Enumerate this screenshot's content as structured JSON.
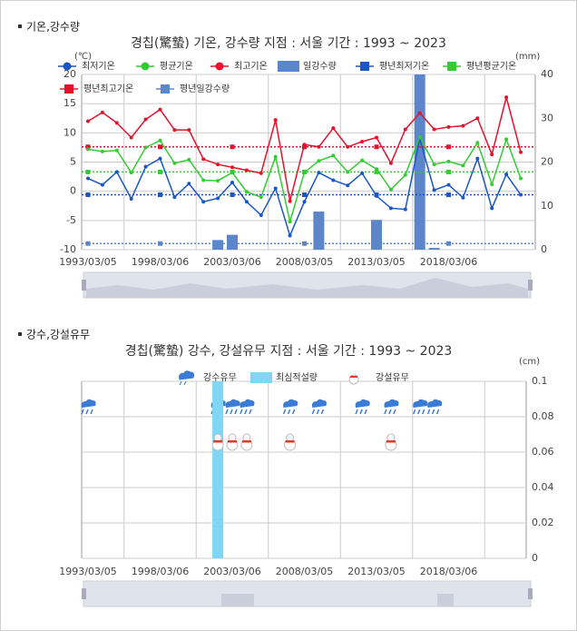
{
  "chart_data": [
    {
      "type": "combo",
      "section_title": "기온,강수량",
      "title": "경칩(驚蟄) 기온, 강수량  지점 : 서울 기간 : 1993 ~ 2023",
      "y_label": "(℃)",
      "y2_label": "(mm)",
      "categories": [
        "1993/03/05",
        null,
        null,
        null,
        null,
        "1998/03/06",
        null,
        null,
        null,
        null,
        "2003/03/06",
        null,
        null,
        null,
        null,
        "2008/03/05",
        null,
        null,
        null,
        null,
        "2013/03/05",
        null,
        null,
        null,
        null,
        "2018/03/06",
        null,
        null,
        null,
        null,
        null
      ],
      "ylim": [
        -10,
        20
      ],
      "yticks": [
        -10,
        -5,
        0,
        5,
        10,
        15,
        20
      ],
      "y2lim": [
        0,
        40
      ],
      "y2ticks": [
        0,
        10,
        20,
        30,
        40
      ],
      "grid": true,
      "series": [
        {
          "name": "최저기온",
          "kind": "line",
          "color": "#1a56c4",
          "values": [
            2.2,
            1.1,
            3.3,
            -1.3,
            4.2,
            5.6,
            -1,
            1.3,
            -1.8,
            -1.2,
            1.5,
            -1.8,
            -4.1,
            0.5,
            -7.6,
            -1.8,
            3.2,
            1.9,
            1,
            3.1,
            -0.8,
            -2.9,
            -3.1,
            9,
            0.2,
            1.1,
            -1.1,
            5.6,
            -2.9,
            2.9,
            -0.6
          ]
        },
        {
          "name": "평균기온",
          "kind": "line",
          "color": "#33cc33",
          "values": [
            7.2,
            6.8,
            7,
            3.2,
            7.5,
            8.7,
            4.8,
            5.4,
            1.9,
            1.8,
            3.2,
            -0.1,
            -1,
            5.9,
            -5.2,
            3.2,
            5.2,
            6.1,
            3.3,
            5.3,
            3.8,
            0.3,
            2.8,
            9.3,
            4.6,
            5.1,
            4.4,
            8.3,
            1.2,
            8.9,
            2.2
          ]
        },
        {
          "name": "최고기온",
          "kind": "line",
          "color": "#e8102a",
          "values": [
            12,
            13.5,
            11.7,
            9.2,
            12.3,
            14,
            10.5,
            10.5,
            5.5,
            4.6,
            4.1,
            3.6,
            3.1,
            12.2,
            -1.7,
            8,
            7.6,
            10.8,
            7.6,
            8.5,
            9.2,
            4.8,
            10.6,
            13.4,
            10.6,
            11,
            11.2,
            12.5,
            6.3,
            16.1,
            6.7
          ]
        },
        {
          "name": "일강수량",
          "kind": "bar",
          "axis": "y2",
          "color": "#5b86c9",
          "values": [
            0,
            0,
            0,
            0,
            0,
            0,
            0,
            0,
            0,
            2.2,
            3.4,
            0,
            0,
            0,
            0,
            0,
            8.7,
            0,
            0,
            0,
            6.8,
            0,
            0,
            40,
            0.4,
            0,
            0,
            0,
            0,
            0,
            0
          ]
        },
        {
          "name": "평년최저기온",
          "kind": "average",
          "color": "#1a56c4",
          "value": -0.6
        },
        {
          "name": "평년평균기온",
          "kind": "average",
          "color": "#33cc33",
          "value": 3.3
        },
        {
          "name": "평년최고기온",
          "kind": "average",
          "color": "#e8102a",
          "value": 7.6
        },
        {
          "name": "평년일강수량",
          "kind": "average",
          "axis": "y2",
          "color": "#5b86c9",
          "value": 1.4
        }
      ]
    },
    {
      "type": "presence",
      "section_title": "강수,강설유무",
      "title": "경칩(驚蟄) 강수, 강설유무  지점 : 서울 기간 : 1993 ~ 2023",
      "y2_label": "(cm)",
      "categories": [
        "1993/03/05",
        null,
        null,
        null,
        null,
        "1998/03/06",
        null,
        null,
        null,
        null,
        "2003/03/06",
        null,
        null,
        null,
        null,
        "2008/03/05",
        null,
        null,
        null,
        null,
        "2013/03/05",
        null,
        null,
        null,
        null,
        "2018/03/06",
        null,
        null,
        null,
        null,
        null
      ],
      "y2lim": [
        0,
        0.1
      ],
      "y2ticks": [
        0,
        0.02,
        0.04,
        0.06,
        0.08,
        0.1
      ],
      "grid": true,
      "series": [
        {
          "name": "강수유무",
          "kind": "rain",
          "color": "#3a7bd5",
          "values": [
            1,
            null,
            null,
            null,
            null,
            null,
            null,
            null,
            null,
            1,
            1,
            1,
            null,
            null,
            1,
            null,
            1,
            null,
            null,
            1,
            null,
            1,
            null,
            1,
            1,
            null,
            null,
            null,
            null,
            null,
            null
          ]
        },
        {
          "name": "최심적설량",
          "kind": "bar",
          "axis": "y2",
          "color": "#7fd6f5",
          "values": [
            0,
            0,
            0,
            0,
            0,
            0,
            0,
            0,
            0,
            0.1,
            0,
            0,
            0,
            0,
            0,
            0,
            0,
            0,
            0,
            0,
            0,
            0,
            0,
            0,
            0,
            0,
            0,
            0,
            0,
            0,
            0
          ]
        },
        {
          "name": "강설유무",
          "kind": "snow",
          "color": "#e03a2a",
          "values": [
            null,
            null,
            null,
            null,
            null,
            null,
            null,
            null,
            null,
            1,
            1,
            1,
            null,
            null,
            1,
            null,
            null,
            null,
            null,
            null,
            null,
            1,
            null,
            null,
            null,
            null,
            null,
            null,
            null,
            null,
            null
          ]
        }
      ]
    }
  ]
}
